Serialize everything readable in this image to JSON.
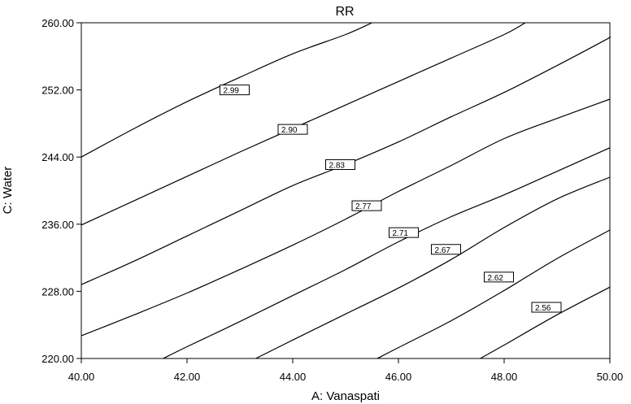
{
  "chart_data": {
    "type": "contour",
    "title": "RR",
    "xlabel": "A: Vanaspati",
    "ylabel": "C: Water",
    "xlim": [
      40.0,
      50.0
    ],
    "ylim": [
      220.0,
      260.0
    ],
    "x_ticks": [
      "40.00",
      "42.00",
      "44.00",
      "46.00",
      "48.00",
      "50.00"
    ],
    "y_ticks": [
      "220.00",
      "228.00",
      "236.00",
      "244.00",
      "252.00",
      "260.00"
    ],
    "grid": false,
    "contours": [
      {
        "label": "2.99",
        "label_at": [
          42.9,
          252.0
        ],
        "points": [
          [
            40.0,
            244.0
          ],
          [
            41.0,
            247.4
          ],
          [
            42.0,
            250.6
          ],
          [
            43.0,
            253.5
          ],
          [
            44.0,
            256.3
          ],
          [
            45.0,
            258.6
          ],
          [
            45.5,
            260.0
          ]
        ]
      },
      {
        "label": "2.90",
        "label_at": [
          44.0,
          247.3
        ],
        "points": [
          [
            40.0,
            235.9
          ],
          [
            41.0,
            238.8
          ],
          [
            42.0,
            241.7
          ],
          [
            43.0,
            244.6
          ],
          [
            44.0,
            247.4
          ],
          [
            45.0,
            250.2
          ],
          [
            46.0,
            253.0
          ],
          [
            47.0,
            255.8
          ],
          [
            48.0,
            258.6
          ],
          [
            48.4,
            260.0
          ]
        ]
      },
      {
        "label": "2.83",
        "label_at": [
          44.9,
          243.1
        ],
        "points": [
          [
            40.0,
            228.8
          ],
          [
            41.0,
            231.6
          ],
          [
            42.0,
            234.6
          ],
          [
            43.0,
            237.6
          ],
          [
            44.0,
            240.6
          ],
          [
            45.0,
            243.1
          ],
          [
            46.0,
            245.8
          ],
          [
            47.0,
            248.8
          ],
          [
            48.0,
            251.7
          ],
          [
            49.0,
            254.9
          ],
          [
            49.9,
            257.9
          ],
          [
            50.0,
            258.3
          ]
        ]
      },
      {
        "label": "2.77",
        "label_at": [
          45.4,
          238.2
        ],
        "points": [
          [
            40.0,
            222.7
          ],
          [
            41.0,
            225.2
          ],
          [
            42.0,
            227.8
          ],
          [
            43.0,
            230.6
          ],
          [
            44.0,
            233.5
          ],
          [
            45.0,
            236.6
          ],
          [
            46.0,
            239.9
          ],
          [
            47.0,
            243.0
          ],
          [
            48.0,
            246.2
          ],
          [
            49.0,
            248.6
          ],
          [
            50.0,
            250.9
          ]
        ]
      },
      {
        "label": "2.71",
        "label_at": [
          46.1,
          235.0
        ],
        "points": [
          [
            41.55,
            220.0
          ],
          [
            42.0,
            221.4
          ],
          [
            43.0,
            224.4
          ],
          [
            44.0,
            227.5
          ],
          [
            45.0,
            230.6
          ],
          [
            46.0,
            233.9
          ],
          [
            47.0,
            236.9
          ],
          [
            48.0,
            239.5
          ],
          [
            49.0,
            242.3
          ],
          [
            50.0,
            245.1
          ]
        ]
      },
      {
        "label": "2.67",
        "label_at": [
          46.9,
          233.0
        ],
        "points": [
          [
            43.3,
            220.0
          ],
          [
            44.0,
            222.2
          ],
          [
            45.0,
            225.3
          ],
          [
            46.0,
            228.4
          ],
          [
            47.0,
            231.8
          ],
          [
            48.0,
            235.6
          ],
          [
            49.0,
            239.0
          ],
          [
            50.0,
            241.6
          ]
        ]
      },
      {
        "label": "2.62",
        "label_at": [
          47.9,
          229.7
        ],
        "points": [
          [
            45.6,
            220.0
          ],
          [
            46.0,
            221.3
          ],
          [
            47.0,
            224.5
          ],
          [
            48.0,
            228.1
          ],
          [
            49.0,
            231.9
          ],
          [
            50.0,
            235.3
          ]
        ]
      },
      {
        "label": "2.56",
        "label_at": [
          48.8,
          226.1
        ],
        "points": [
          [
            47.55,
            220.0
          ],
          [
            48.0,
            221.6
          ],
          [
            49.0,
            225.2
          ],
          [
            50.0,
            228.5
          ]
        ]
      }
    ]
  }
}
